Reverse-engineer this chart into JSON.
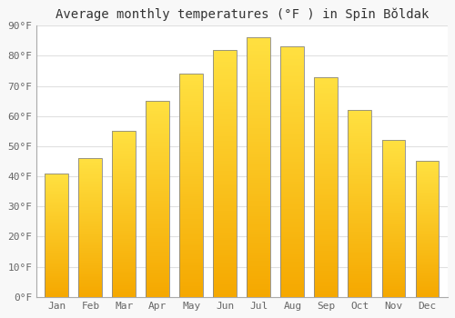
{
  "title": "Average monthly temperatures (°F ) in Spīn Bŏldak",
  "months": [
    "Jan",
    "Feb",
    "Mar",
    "Apr",
    "May",
    "Jun",
    "Jul",
    "Aug",
    "Sep",
    "Oct",
    "Nov",
    "Dec"
  ],
  "values": [
    41,
    46,
    55,
    65,
    74,
    82,
    86,
    83,
    73,
    62,
    52,
    45
  ],
  "bar_color_bottom": "#F5A800",
  "bar_color_top": "#FFE040",
  "bar_edge_color": "#888888",
  "ylim": [
    0,
    90
  ],
  "yticks": [
    0,
    10,
    20,
    30,
    40,
    50,
    60,
    70,
    80,
    90
  ],
  "ytick_labels": [
    "0°F",
    "10°F",
    "20°F",
    "30°F",
    "40°F",
    "50°F",
    "60°F",
    "70°F",
    "80°F",
    "90°F"
  ],
  "background_color": "#f8f8f8",
  "plot_bg_color": "#ffffff",
  "grid_color": "#e0e0e0",
  "title_fontsize": 10,
  "tick_fontsize": 8,
  "bar_width": 0.7,
  "n_gradient_steps": 100
}
